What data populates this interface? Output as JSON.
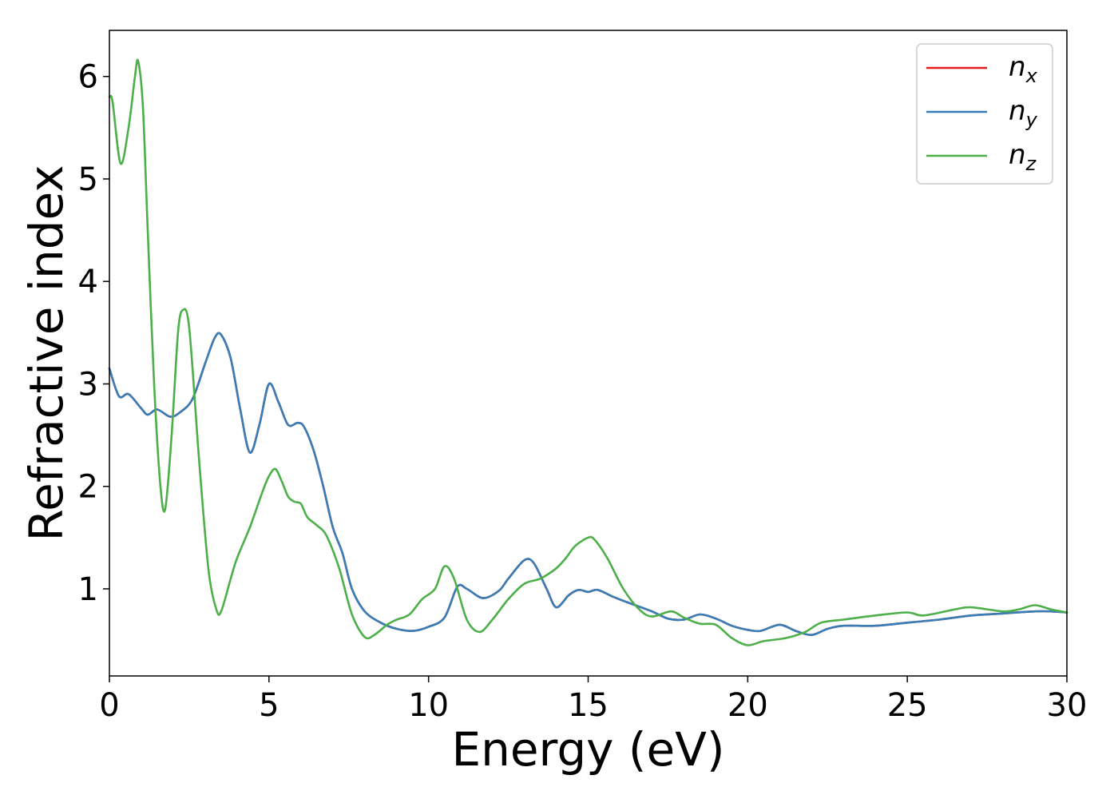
{
  "chart_data": {
    "type": "line",
    "xlabel": "Energy (eV)",
    "ylabel": "Refractive index",
    "xlim": [
      0,
      30
    ],
    "ylim": [
      0.15,
      6.45
    ],
    "xticks": [
      0,
      5,
      10,
      15,
      20,
      25,
      30
    ],
    "yticks": [
      1,
      2,
      3,
      4,
      5,
      6
    ],
    "grid": false,
    "legend_position": "top-right",
    "series": [
      {
        "name": "n_x",
        "label_base": "n",
        "label_sub": "x",
        "color": "#e41a1c",
        "x": [
          0,
          0.3,
          0.6,
          1.0,
          1.2,
          1.5,
          1.9,
          2.2,
          2.6,
          3.0,
          3.3,
          3.5,
          3.8,
          4.1,
          4.4,
          4.7,
          5.0,
          5.3,
          5.6,
          5.9,
          6.1,
          6.4,
          6.7,
          7.0,
          7.3,
          7.6,
          8.0,
          8.5,
          9.0,
          9.5,
          10.0,
          10.5,
          10.9,
          11.2,
          11.7,
          12.2,
          12.5,
          13.0,
          13.3,
          13.7,
          14.0,
          14.4,
          14.7,
          15.0,
          15.3,
          15.8,
          16.3,
          17.0,
          17.5,
          18.0,
          18.5,
          19.0,
          19.5,
          20.0,
          20.4,
          21.0,
          21.5,
          22.0,
          22.5,
          23.0,
          24.0,
          25.0,
          26.0,
          27.0,
          28.0,
          29.0,
          29.5,
          30.0
        ],
        "y": [
          3.15,
          2.88,
          2.9,
          2.76,
          2.7,
          2.75,
          2.68,
          2.72,
          2.85,
          3.2,
          3.45,
          3.48,
          3.25,
          2.75,
          2.33,
          2.6,
          3.0,
          2.82,
          2.6,
          2.62,
          2.58,
          2.35,
          2.0,
          1.6,
          1.35,
          1.0,
          0.78,
          0.67,
          0.61,
          0.59,
          0.63,
          0.72,
          1.02,
          1.0,
          0.91,
          0.98,
          1.1,
          1.28,
          1.25,
          1.0,
          0.82,
          0.94,
          0.99,
          0.97,
          0.99,
          0.92,
          0.86,
          0.78,
          0.71,
          0.7,
          0.75,
          0.71,
          0.64,
          0.6,
          0.59,
          0.65,
          0.59,
          0.55,
          0.61,
          0.64,
          0.64,
          0.67,
          0.7,
          0.74,
          0.76,
          0.78,
          0.78,
          0.77
        ]
      },
      {
        "name": "n_y",
        "label_base": "n",
        "label_sub": "y",
        "color": "#377eb8",
        "x": [
          0,
          0.3,
          0.6,
          1.0,
          1.2,
          1.5,
          1.9,
          2.2,
          2.6,
          3.0,
          3.3,
          3.5,
          3.8,
          4.1,
          4.4,
          4.7,
          5.0,
          5.3,
          5.6,
          5.9,
          6.1,
          6.4,
          6.7,
          7.0,
          7.3,
          7.6,
          8.0,
          8.5,
          9.0,
          9.5,
          10.0,
          10.5,
          10.9,
          11.2,
          11.7,
          12.2,
          12.5,
          13.0,
          13.3,
          13.7,
          14.0,
          14.4,
          14.7,
          15.0,
          15.3,
          15.8,
          16.3,
          17.0,
          17.5,
          18.0,
          18.5,
          19.0,
          19.5,
          20.0,
          20.4,
          21.0,
          21.5,
          22.0,
          22.5,
          23.0,
          24.0,
          25.0,
          26.0,
          27.0,
          28.0,
          29.0,
          29.5,
          30.0
        ],
        "y": [
          3.15,
          2.88,
          2.9,
          2.76,
          2.7,
          2.75,
          2.68,
          2.72,
          2.85,
          3.2,
          3.45,
          3.48,
          3.25,
          2.75,
          2.33,
          2.6,
          3.0,
          2.82,
          2.6,
          2.62,
          2.58,
          2.35,
          2.0,
          1.6,
          1.35,
          1.0,
          0.78,
          0.67,
          0.61,
          0.59,
          0.63,
          0.72,
          1.02,
          1.0,
          0.91,
          0.98,
          1.1,
          1.28,
          1.25,
          1.0,
          0.82,
          0.94,
          0.99,
          0.97,
          0.99,
          0.92,
          0.86,
          0.78,
          0.71,
          0.7,
          0.75,
          0.71,
          0.64,
          0.6,
          0.59,
          0.65,
          0.59,
          0.55,
          0.61,
          0.64,
          0.64,
          0.67,
          0.7,
          0.74,
          0.76,
          0.78,
          0.78,
          0.77
        ]
      },
      {
        "name": "n_z",
        "label_base": "n",
        "label_sub": "z",
        "color": "#4daf4a",
        "x": [
          0,
          0.1,
          0.35,
          0.6,
          0.8,
          0.9,
          1.05,
          1.2,
          1.4,
          1.6,
          1.75,
          1.95,
          2.15,
          2.3,
          2.5,
          2.8,
          3.1,
          3.35,
          3.5,
          3.8,
          4.0,
          4.4,
          4.8,
          5.0,
          5.2,
          5.4,
          5.6,
          5.8,
          6.0,
          6.2,
          6.5,
          6.8,
          7.2,
          7.6,
          8.0,
          8.3,
          8.7,
          9.0,
          9.4,
          9.8,
          10.2,
          10.5,
          10.8,
          11.2,
          11.6,
          12.0,
          12.5,
          13.0,
          13.5,
          14.0,
          14.3,
          14.6,
          15.0,
          15.2,
          15.6,
          16.1,
          16.6,
          17.0,
          17.6,
          18.0,
          18.5,
          19.0,
          19.5,
          20.0,
          20.5,
          21.2,
          21.8,
          22.3,
          23.0,
          24.0,
          25.0,
          25.5,
          26.5,
          27.0,
          28.0,
          28.5,
          29.0,
          29.5,
          30.0
        ],
        "y": [
          5.8,
          5.75,
          5.15,
          5.5,
          6.0,
          6.15,
          5.7,
          4.5,
          3.0,
          2.0,
          1.78,
          2.5,
          3.5,
          3.72,
          3.55,
          2.3,
          1.2,
          0.8,
          0.78,
          1.1,
          1.3,
          1.6,
          1.95,
          2.1,
          2.17,
          2.05,
          1.9,
          1.85,
          1.83,
          1.7,
          1.62,
          1.52,
          1.2,
          0.75,
          0.53,
          0.55,
          0.65,
          0.7,
          0.75,
          0.9,
          1.0,
          1.22,
          1.1,
          0.7,
          0.58,
          0.7,
          0.9,
          1.05,
          1.1,
          1.2,
          1.3,
          1.42,
          1.5,
          1.48,
          1.3,
          1.0,
          0.8,
          0.73,
          0.78,
          0.72,
          0.66,
          0.65,
          0.52,
          0.45,
          0.49,
          0.52,
          0.58,
          0.67,
          0.7,
          0.74,
          0.77,
          0.74,
          0.8,
          0.82,
          0.78,
          0.8,
          0.84,
          0.8,
          0.77
        ]
      }
    ]
  }
}
